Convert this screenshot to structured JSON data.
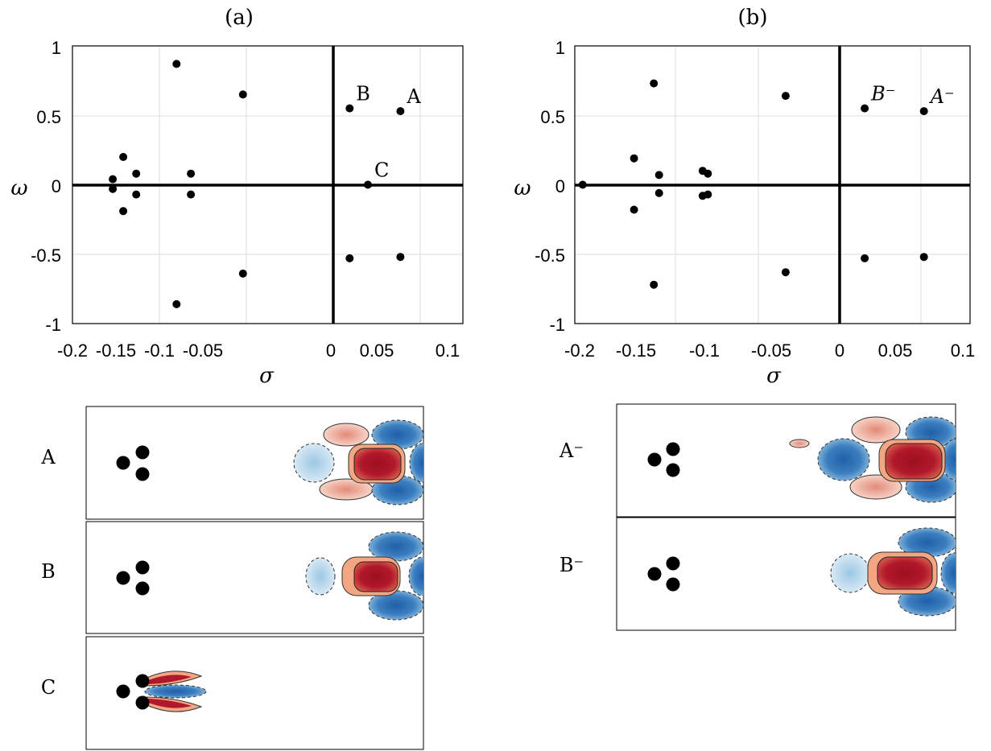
{
  "chart_data": [
    {
      "type": "scatter",
      "panel_label": "(a)",
      "xlabel": "σ",
      "ylabel": "ω",
      "xlim": [
        -0.2,
        0.1
      ],
      "ylim": [
        -1,
        1
      ],
      "xticks": [
        "-0.2",
        "-0.15",
        "-0.1",
        "-0.05",
        "0",
        "0.05",
        "0.1"
      ],
      "yticks": [
        "1",
        "0.5",
        "0",
        "-0.5",
        "-1"
      ],
      "grid": true,
      "points": [
        {
          "x": -0.12,
          "y": 0.87
        },
        {
          "x": -0.12,
          "y": -0.86
        },
        {
          "x": -0.069,
          "y": 0.65
        },
        {
          "x": -0.069,
          "y": -0.64
        },
        {
          "x": -0.161,
          "y": 0.2
        },
        {
          "x": -0.161,
          "y": -0.19
        },
        {
          "x": -0.169,
          "y": 0.04
        },
        {
          "x": -0.169,
          "y": -0.03
        },
        {
          "x": -0.151,
          "y": 0.08
        },
        {
          "x": -0.151,
          "y": -0.07
        },
        {
          "x": -0.109,
          "y": 0.08
        },
        {
          "x": -0.109,
          "y": -0.07
        },
        {
          "x": 0.013,
          "y": 0.55,
          "label": "B"
        },
        {
          "x": 0.013,
          "y": -0.53
        },
        {
          "x": 0.052,
          "y": 0.53,
          "label": "A"
        },
        {
          "x": 0.052,
          "y": -0.52
        },
        {
          "x": 0.027,
          "y": 0.0,
          "label": "C"
        }
      ]
    },
    {
      "type": "scatter",
      "panel_label": "(b)",
      "xlabel": "σ",
      "ylabel": "ω",
      "xlim": [
        -0.2,
        0.1
      ],
      "ylim": [
        -1,
        1
      ],
      "xticks": [
        "-0.2",
        "-0.15",
        "-0.1",
        "-0.05",
        "0",
        "0.05",
        "0.1"
      ],
      "yticks": [
        "1",
        "0.5",
        "0",
        "-0.5",
        "-1"
      ],
      "grid": true,
      "points": [
        {
          "x": -0.194,
          "y": 0.0
        },
        {
          "x": -0.14,
          "y": 0.73
        },
        {
          "x": -0.14,
          "y": -0.72
        },
        {
          "x": -0.155,
          "y": 0.19
        },
        {
          "x": -0.155,
          "y": -0.18
        },
        {
          "x": -0.136,
          "y": 0.07
        },
        {
          "x": -0.136,
          "y": -0.06
        },
        {
          "x": -0.103,
          "y": 0.1
        },
        {
          "x": -0.103,
          "y": -0.08
        },
        {
          "x": -0.099,
          "y": 0.08
        },
        {
          "x": -0.099,
          "y": -0.07
        },
        {
          "x": -0.04,
          "y": 0.64
        },
        {
          "x": -0.04,
          "y": -0.63
        },
        {
          "x": 0.02,
          "y": 0.55,
          "label": "B⁻"
        },
        {
          "x": 0.02,
          "y": -0.53
        },
        {
          "x": 0.065,
          "y": 0.53,
          "label": "A⁻"
        },
        {
          "x": 0.065,
          "y": -0.52
        }
      ]
    }
  ],
  "modes": {
    "a": {
      "label": "A"
    },
    "b": {
      "label": "B"
    },
    "c": {
      "label": "C"
    },
    "a_minus": {
      "label": "A⁻"
    },
    "b_minus": {
      "label": "B⁻"
    }
  },
  "colors": {
    "positive": "#b2182b",
    "positive_light": "#f4a582",
    "negative": "#2166ac",
    "negative_light": "#92c5de",
    "cylinder": "#000000"
  }
}
